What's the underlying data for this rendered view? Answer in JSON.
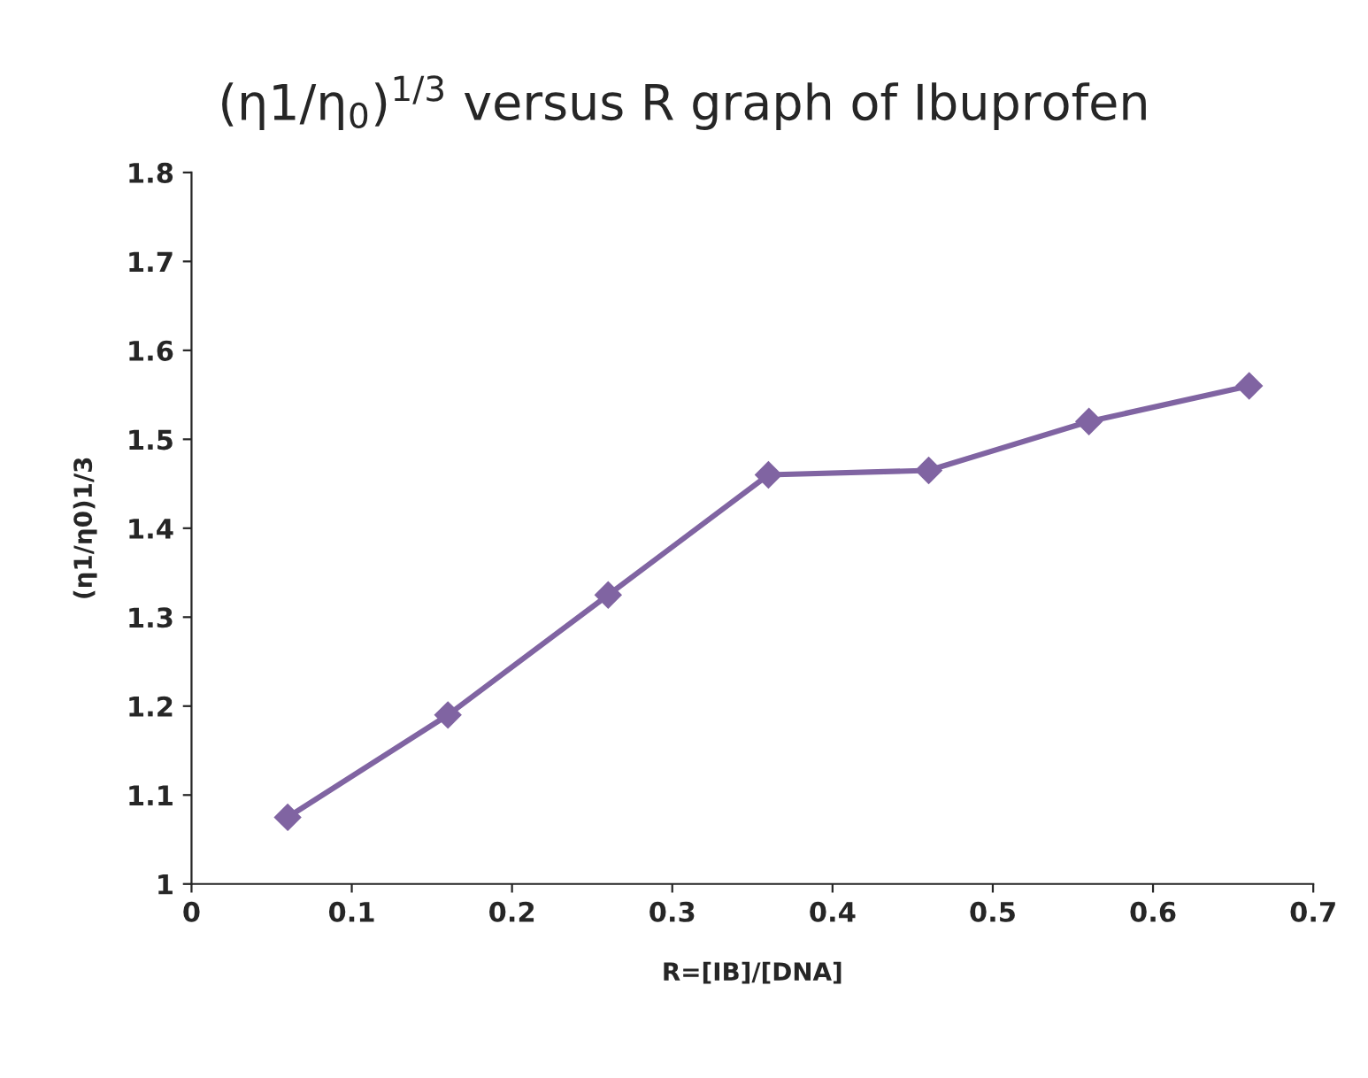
{
  "chart_data": {
    "type": "line",
    "title": "(η1/η$_{0}$)$^{1/3}$ versus R graph of Ibuprofen",
    "xlabel": "R=[IB]/[DNA]",
    "ylabel": "(η1/η0)1/3",
    "x": [
      0.06,
      0.16,
      0.26,
      0.36,
      0.46,
      0.56,
      0.66
    ],
    "series": [
      {
        "color": "#8064a2",
        "values": [
          1.075,
          1.19,
          1.325,
          1.46,
          1.465,
          1.52,
          1.56
        ]
      }
    ],
    "xlim": [
      0,
      0.7
    ],
    "xticks": [
      0,
      0.1,
      0.2,
      0.3,
      0.4,
      0.5,
      0.6,
      0.7
    ],
    "ylim": [
      1,
      1.8
    ],
    "yticks": [
      1,
      1.1,
      1.2,
      1.3,
      1.4,
      1.5,
      1.6,
      1.7,
      1.8
    ],
    "grid": false,
    "legend": false,
    "marker": "diamond",
    "line_style": "solid"
  }
}
